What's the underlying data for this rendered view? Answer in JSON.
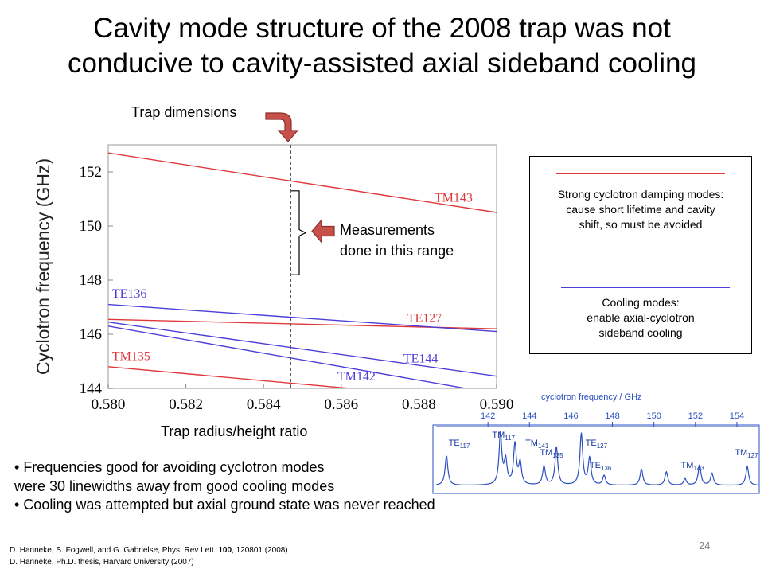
{
  "slide": {
    "title_line1": "Cavity mode structure of the 2008 trap was not",
    "title_line2": "conducive to cavity-assisted axial sideband cooling",
    "trap_dimensions": "Trap dimensions",
    "measurements_line1": "Measurements",
    "measurements_line2": "done in this range",
    "xaxis_caption": "Trap radius/height ratio",
    "legend": {
      "damping_line1": "Strong cyclotron damping modes:",
      "damping_line2": "cause short lifetime and cavity",
      "damping_line3": "shift, so must be avoided",
      "cooling_line1": "Cooling modes:",
      "cooling_line2": "enable axial-cyclotron",
      "cooling_line3": "sideband cooling",
      "damping_color": "#e0383a",
      "cooling_color": "#4b3fd8"
    },
    "bullets": [
      "Frequencies good for avoiding cyclotron modes",
      "were 30 linewidths away from good cooling modes",
      "Cooling was attempted but axial ground state was never reached"
    ],
    "refs_line1_pre": "D. Hanneke, S. Fogwell, and G. Gabrielse, Phys. Rev Lett. ",
    "refs_line1_bold": "100",
    "refs_line1_post": ", 120801 (2008)",
    "refs_line2": "D. Hanneke, Ph.D. thesis, Harvard University (2007)",
    "page_number": "24"
  },
  "chart_data": [
    {
      "type": "line",
      "ylabel": "Cyclotron frequency (GHz)",
      "xlabel": "",
      "xlim": [
        0.58,
        0.59
      ],
      "ylim": [
        144,
        153
      ],
      "xticks": [
        "0.580",
        "0.582",
        "0.584",
        "0.586",
        "0.588",
        "0.590"
      ],
      "yticks": [
        "144",
        "146",
        "148",
        "150",
        "152"
      ],
      "marker_x": 0.5847,
      "measurement_range": [
        148.2,
        151.3
      ],
      "series": [
        {
          "name": "TM143",
          "color": "#e0383a",
          "x": [
            0.58,
            0.59
          ],
          "y": [
            152.7,
            150.5
          ]
        },
        {
          "name": "TE127",
          "color": "#e0383a",
          "x": [
            0.58,
            0.59
          ],
          "y": [
            146.55,
            146.2
          ]
        },
        {
          "name": "TM135",
          "color": "#e0383a",
          "x": [
            0.58,
            0.5862
          ],
          "y": [
            144.8,
            144.0
          ]
        },
        {
          "name": "TE136",
          "color": "#4b3fd8",
          "x": [
            0.58,
            0.59
          ],
          "y": [
            147.1,
            146.1
          ]
        },
        {
          "name": "TE144",
          "color": "#4b3fd8",
          "x": [
            0.58,
            0.59
          ],
          "y": [
            146.45,
            144.45
          ]
        },
        {
          "name": "TM142",
          "color": "#4b3fd8",
          "x": [
            0.58,
            0.59
          ],
          "y": [
            146.3,
            143.8
          ]
        }
      ],
      "series_labels": [
        "TM143",
        "TE127",
        "TM135",
        "TE136",
        "TE144",
        "TM142"
      ]
    },
    {
      "type": "line",
      "title": "cyclotron frequency / GHz",
      "xlim": [
        139.5,
        155
      ],
      "xticks": [
        "142",
        "144",
        "146",
        "148",
        "150",
        "152",
        "154"
      ],
      "color": "#2b4fc0",
      "peaks": [
        {
          "x": 140.0,
          "h": 0.55
        },
        {
          "x": 142.6,
          "h": 0.95
        },
        {
          "x": 142.85,
          "h": 0.45
        },
        {
          "x": 143.3,
          "h": 0.75
        },
        {
          "x": 143.55,
          "h": 0.4
        },
        {
          "x": 144.7,
          "h": 0.35
        },
        {
          "x": 145.3,
          "h": 0.7
        },
        {
          "x": 146.5,
          "h": 0.95
        },
        {
          "x": 146.9,
          "h": 0.5
        },
        {
          "x": 147.6,
          "h": 0.18
        },
        {
          "x": 149.4,
          "h": 0.3
        },
        {
          "x": 150.6,
          "h": 0.25
        },
        {
          "x": 151.5,
          "h": 0.12
        },
        {
          "x": 152.2,
          "h": 0.38
        },
        {
          "x": 152.8,
          "h": 0.22
        },
        {
          "x": 154.5,
          "h": 0.35
        }
      ],
      "labels": [
        {
          "main": "TE",
          "sub": "117",
          "x": 140.1,
          "row": 1
        },
        {
          "main": "TM",
          "sub": "117",
          "x": 142.2,
          "row": 0
        },
        {
          "main": "TM",
          "sub": "141",
          "x": 143.8,
          "row": 1
        },
        {
          "main": "TM",
          "sub": "135",
          "x": 144.5,
          "row": 2
        },
        {
          "main": "TE",
          "sub": "127",
          "x": 146.7,
          "row": 1
        },
        {
          "main": "TE",
          "sub": "136",
          "x": 146.9,
          "row": 3
        },
        {
          "main": "TM",
          "sub": "143",
          "x": 151.3,
          "row": 3
        },
        {
          "main": "TM",
          "sub": "127",
          "x": 153.9,
          "row": 2
        }
      ]
    }
  ]
}
